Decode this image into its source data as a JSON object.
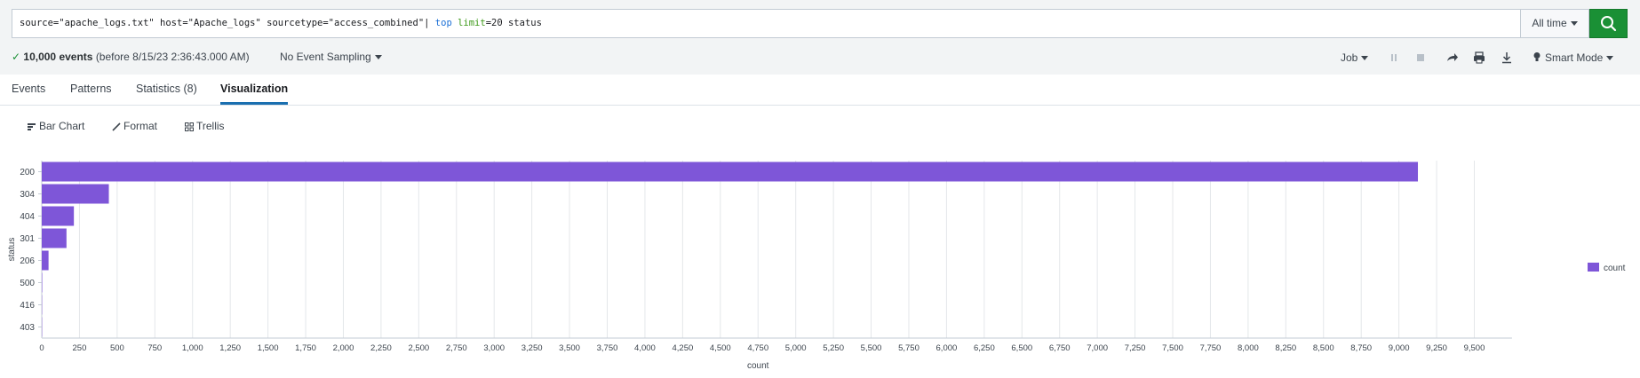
{
  "search": {
    "query_parts": [
      {
        "text": "source=\"apache_logs.txt\" host=\"Apache_logs\" sourcetype=\"access_combined\"| ",
        "kind": "plain"
      },
      {
        "text": "top",
        "kind": "cmd"
      },
      {
        "text": " ",
        "kind": "plain"
      },
      {
        "text": "limit",
        "kind": "arg"
      },
      {
        "text": "=20 status",
        "kind": "plain"
      }
    ],
    "time_range": "All time",
    "search_icon": "search-icon"
  },
  "status": {
    "events_count": "10,000 events",
    "events_detail": "(before 8/15/23 2:36:43.000 AM)",
    "sampling": "No Event Sampling",
    "job": "Job",
    "mode": "Smart Mode"
  },
  "tabs": [
    {
      "label": "Events"
    },
    {
      "label": "Patterns"
    },
    {
      "label": "Statistics (8)"
    },
    {
      "label": "Visualization",
      "active": true
    }
  ],
  "viz_toolbar": {
    "bar_chart": "Bar Chart",
    "format": "Format",
    "trellis": "Trellis"
  },
  "colors": {
    "bar": "#7e56d8",
    "search_button": "#1a9035",
    "tab_accent": "#1a6fb0"
  },
  "chart_data": {
    "type": "bar",
    "orientation": "horizontal",
    "categories": [
      "200",
      "304",
      "404",
      "301",
      "206",
      "500",
      "416",
      "403"
    ],
    "series": [
      {
        "name": "count",
        "values": [
          9126,
          445,
          213,
          164,
          45,
          3,
          2,
          2
        ]
      }
    ],
    "xlabel": "count",
    "ylabel": "status",
    "xlim": [
      0,
      9750
    ],
    "xticks": [
      "0",
      "250",
      "500",
      "750",
      "1,000",
      "1,250",
      "1,500",
      "1,750",
      "2,000",
      "2,250",
      "2,500",
      "2,750",
      "3,000",
      "3,250",
      "3,500",
      "3,750",
      "4,000",
      "4,250",
      "4,500",
      "4,750",
      "5,000",
      "5,250",
      "5,500",
      "5,750",
      "6,000",
      "6,250",
      "6,500",
      "6,750",
      "7,000",
      "7,250",
      "7,500",
      "7,750",
      "8,000",
      "8,250",
      "8,500",
      "8,750",
      "9,000",
      "9,250",
      "9,500"
    ],
    "grid": true,
    "legend": "right"
  }
}
